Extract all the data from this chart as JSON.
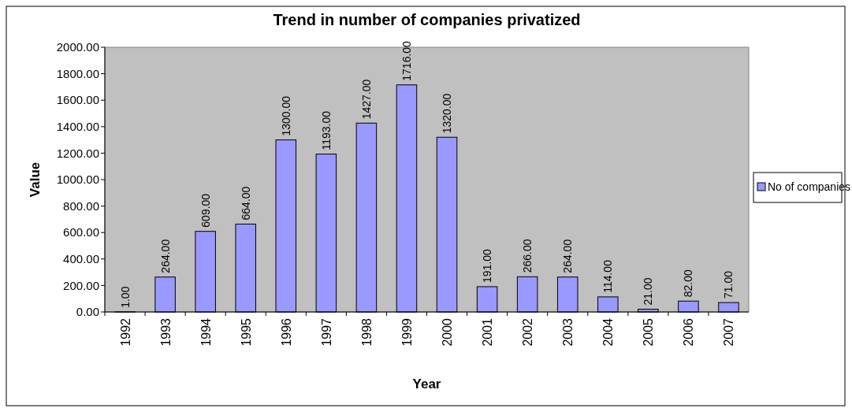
{
  "chart_data": {
    "type": "bar",
    "title": "Trend in number of companies privatized",
    "xlabel": "Year",
    "ylabel": "Value",
    "categories": [
      "1992",
      "1993",
      "1994",
      "1995",
      "1996",
      "1997",
      "1998",
      "1999",
      "2000",
      "2001",
      "2002",
      "2003",
      "2004",
      "2005",
      "2006",
      "2007"
    ],
    "series": [
      {
        "name": "No of companies",
        "color": "#9999ff",
        "values": [
          1,
          264,
          609,
          664,
          1300,
          1193,
          1427,
          1716,
          1320,
          191,
          266,
          264,
          114,
          21,
          82,
          71
        ],
        "value_labels": [
          "1.00",
          "264.00",
          "609.00",
          "664.00",
          "1300.00",
          "1193.00",
          "1427.00",
          "1716.00",
          "1320.00",
          "191.00",
          "266.00",
          "264.00",
          "114.00",
          "21.00",
          "82.00",
          "71.00"
        ]
      }
    ],
    "ylim": [
      0,
      2000
    ],
    "yticks": [
      {
        "value": 0,
        "label": "0.00"
      },
      {
        "value": 200,
        "label": "200.00"
      },
      {
        "value": 400,
        "label": "400.00"
      },
      {
        "value": 600,
        "label": "600.00"
      },
      {
        "value": 800,
        "label": "800.00"
      },
      {
        "value": 1000,
        "label": "1000.00"
      },
      {
        "value": 1200,
        "label": "1200.00"
      },
      {
        "value": 1400,
        "label": "1400.00"
      },
      {
        "value": 1600,
        "label": "1600.00"
      },
      {
        "value": 1800,
        "label": "1800.00"
      },
      {
        "value": 2000,
        "label": "2000.00"
      }
    ],
    "grid": false,
    "legend": "right"
  }
}
